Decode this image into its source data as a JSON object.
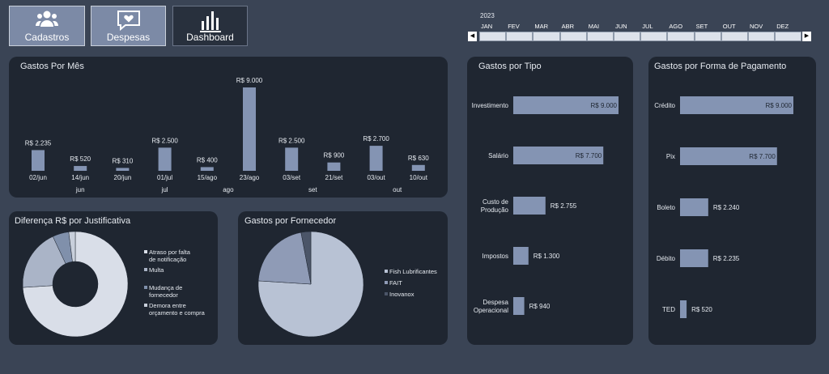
{
  "tabs": [
    {
      "label": "Cadastros"
    },
    {
      "label": "Despesas"
    },
    {
      "label": "Dashboard"
    }
  ],
  "timeline": {
    "year": "2023",
    "months": [
      "JAN",
      "FEV",
      "MAR",
      "ABR",
      "MAI",
      "JUN",
      "JUL",
      "AGO",
      "SET",
      "OUT",
      "NOV",
      "DEZ"
    ],
    "prev": "◀",
    "next": "▶"
  },
  "monthly": {
    "title": "Gastos Por Mês",
    "chart_data": {
      "type": "bar",
      "values": [
        2235,
        520,
        310,
        2500,
        400,
        9000,
        2500,
        900,
        2700,
        630
      ],
      "labels": [
        "R$ 2.235",
        "R$ 520",
        "R$ 310",
        "R$ 2.500",
        "R$ 400",
        "R$ 9.000",
        "R$ 2.500",
        "R$ 900",
        "R$ 2.700",
        "R$ 630"
      ],
      "categories": [
        "02/jun",
        "14/jun",
        "20/jun",
        "01/jul",
        "15/ago",
        "23/ago",
        "03/set",
        "21/set",
        "03/out",
        "10/out"
      ],
      "groups": [
        {
          "label": "jun",
          "from": 0,
          "to": 2
        },
        {
          "label": "jul",
          "from": 3,
          "to": 3
        },
        {
          "label": "ago",
          "from": 4,
          "to": 5
        },
        {
          "label": "set",
          "from": 6,
          "to": 7
        },
        {
          "label": "out",
          "from": 8,
          "to": 9
        }
      ],
      "color": "#8494b3",
      "max": 9000
    }
  },
  "justificativa": {
    "title": "Diferença R$ por Justificativa",
    "chart_data": {
      "type": "pie",
      "variant": "donut",
      "slices": [
        {
          "name": "Atraso por falta de notificação",
          "value": 74,
          "color": "#d9dee8"
        },
        {
          "name": "Multa",
          "value": 19,
          "color": "#aab4c7"
        },
        {
          "name": "Mudança de fornecedor",
          "value": 5,
          "color": "#8090ab"
        },
        {
          "name": "Demora entre orçamento e compra",
          "value": 2,
          "color": "#c8cfdb"
        }
      ]
    }
  },
  "fornecedor": {
    "title": "Gastos por Fornecedor",
    "chart_data": {
      "type": "pie",
      "slices": [
        {
          "name": "Fish Lubrificantes",
          "value": 76,
          "color": "#b8c2d4"
        },
        {
          "name": "FAIT",
          "value": 21,
          "color": "#8f9bb6"
        },
        {
          "name": "Inovanox",
          "value": 3,
          "color": "#4b5568"
        }
      ]
    }
  },
  "tipo": {
    "title": "Gastos por Tipo",
    "chart_data": {
      "type": "bar",
      "orientation": "horizontal",
      "max": 9000,
      "color": "#8494b3",
      "bars": [
        {
          "name": "Investimento",
          "value": 9000,
          "label": "R$ 9.000"
        },
        {
          "name": "Salário",
          "value": 7700,
          "label": "R$ 7.700"
        },
        {
          "name": "Custo de Produção",
          "value": 2755,
          "label": "R$ 2.755"
        },
        {
          "name": "Impostos",
          "value": 1300,
          "label": "R$ 1.300"
        },
        {
          "name": "Despesa Operacional",
          "value": 940,
          "label": "R$ 940"
        }
      ]
    }
  },
  "pagamento": {
    "title": "Gastos por Forma de Pagamento",
    "chart_data": {
      "type": "bar",
      "orientation": "horizontal",
      "max": 9000,
      "color": "#8494b3",
      "bars": [
        {
          "name": "Crédito",
          "value": 9000,
          "label": "R$ 9.000"
        },
        {
          "name": "Pix",
          "value": 7700,
          "label": "R$ 7.700"
        },
        {
          "name": "Boleto",
          "value": 2240,
          "label": "R$ 2.240"
        },
        {
          "name": "Débito",
          "value": 2235,
          "label": "R$ 2.235"
        },
        {
          "name": "TED",
          "value": 520,
          "label": "R$ 520"
        }
      ]
    }
  }
}
